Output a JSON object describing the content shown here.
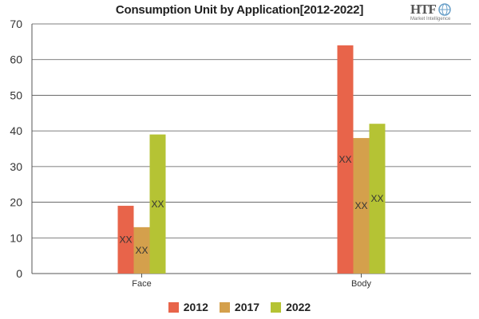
{
  "chart_data": {
    "type": "bar",
    "title": "Consumption Unit by  Application[2012-2022]",
    "categories": [
      "Face",
      "Body"
    ],
    "series": [
      {
        "name": "2012",
        "values": [
          19,
          64
        ],
        "color": "#e8644a",
        "labels": [
          "XX",
          "XX"
        ]
      },
      {
        "name": "2017",
        "values": [
          13,
          38
        ],
        "color": "#d4a04c",
        "labels": [
          "XX",
          "XX"
        ]
      },
      {
        "name": "2022",
        "values": [
          39,
          42
        ],
        "color": "#b5c334",
        "labels": [
          "XX",
          "XX"
        ]
      }
    ],
    "y_ticks": [
      0,
      10,
      20,
      30,
      40,
      50,
      60,
      70
    ],
    "ylim": [
      0,
      70
    ],
    "grid": true,
    "legend_position": "bottom"
  },
  "logo": {
    "text": "HTF",
    "subtext": "Market Intelligence"
  }
}
